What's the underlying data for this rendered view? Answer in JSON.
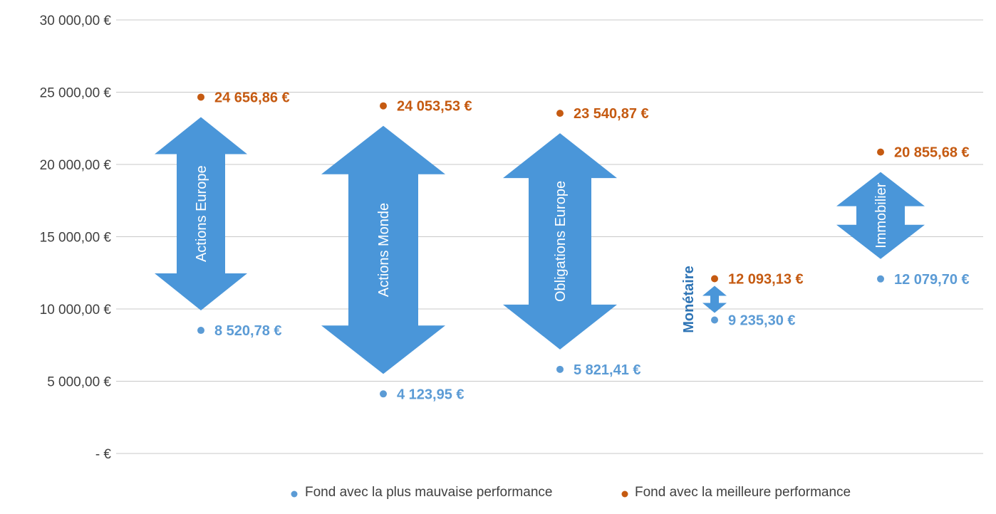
{
  "chart_data": {
    "type": "scatter",
    "title": "",
    "xlabel": "",
    "ylabel": "",
    "ylim": [
      0,
      30000
    ],
    "y_ticks": [
      {
        "value": 0,
        "label": "- €"
      },
      {
        "value": 5000,
        "label": "5 000,00 €"
      },
      {
        "value": 10000,
        "label": "10 000,00 €"
      },
      {
        "value": 15000,
        "label": "15 000,00 €"
      },
      {
        "value": 20000,
        "label": "20 000,00 €"
      },
      {
        "value": 25000,
        "label": "25 000,00 €"
      },
      {
        "value": 30000,
        "label": "30 000,00 €"
      }
    ],
    "grid": true,
    "legend_position": "bottom",
    "categories": [
      "Actions Europe",
      "Actions Monde",
      "Obligations Europe",
      "Monétaire",
      "Immobilier"
    ],
    "category_labels": [
      {
        "text": "Actions Europe",
        "placement": "inside-arrow"
      },
      {
        "text": "Actions Monde",
        "placement": "inside-arrow"
      },
      {
        "text": "Obligations Europe",
        "placement": "inside-arrow"
      },
      {
        "text": "Monétaire",
        "placement": "beside-arrow"
      },
      {
        "text": "Immobilier",
        "placement": "inside-arrow"
      }
    ],
    "series": [
      {
        "name": "Fond avec la plus mauvaise performance",
        "color": "#5b9bd5",
        "values": [
          8520.78,
          4123.95,
          5821.41,
          9235.3,
          12079.7
        ],
        "labels": [
          "8 520,78 €",
          "4 123,95 €",
          "5 821,41 €",
          "9 235,30 €",
          "12 079,70 €"
        ],
        "label_weight": "bold"
      },
      {
        "name": "Fond avec la meilleure performance",
        "color": "#c55a11",
        "values": [
          24656.86,
          24053.53,
          23540.87,
          12093.13,
          20855.68
        ],
        "labels": [
          "24 656,86 €",
          "24 053,53 €",
          "23 540,87 €",
          "12 093,13 €",
          "20 855,68 €"
        ],
        "label_weight": "bold"
      }
    ],
    "arrow_color": "#4a96d9",
    "label_color_outside": "#2e74b5"
  }
}
